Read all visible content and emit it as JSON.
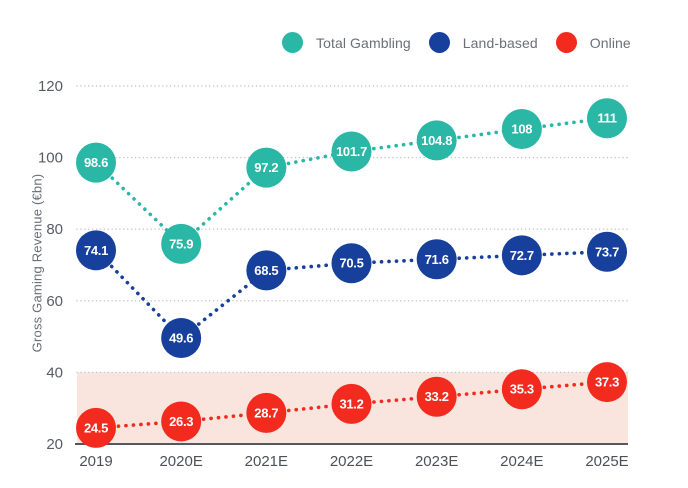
{
  "chart_data": {
    "type": "line",
    "title": "",
    "ylabel": "Gross Gaming Revenue (€bn)",
    "xlabel": "",
    "categories": [
      "2019",
      "2020E",
      "2021E",
      "2022E",
      "2023E",
      "2024E",
      "2025E"
    ],
    "series": [
      {
        "name": "Total Gambling",
        "color": "#2bb7a6",
        "values": [
          98.6,
          75.9,
          97.2,
          101.7,
          104.8,
          108,
          111
        ]
      },
      {
        "name": "Land-based",
        "color": "#16409b",
        "values": [
          74.1,
          49.6,
          68.5,
          70.5,
          71.6,
          72.7,
          73.7
        ]
      },
      {
        "name": "Online",
        "color": "#f22b1e",
        "values": [
          24.5,
          26.3,
          28.7,
          31.2,
          33.2,
          35.3,
          37.3
        ]
      }
    ],
    "ylim": [
      20,
      120
    ],
    "yticks": [
      20,
      40,
      60,
      80,
      100,
      120
    ],
    "grid": "horizontal-dotted",
    "line_style": "dotted",
    "marker": "labeled-circle",
    "legend_position": "top",
    "band": {
      "from": 20,
      "to": 40,
      "color": "#fae5de"
    }
  },
  "colors": {
    "background": "#ffffff",
    "gridline": "#c3c3c3",
    "axis_line": "#54575c",
    "tick_text": "#575c64",
    "x_tick_text": "#4c5157",
    "legend_text": "#6b7077"
  }
}
